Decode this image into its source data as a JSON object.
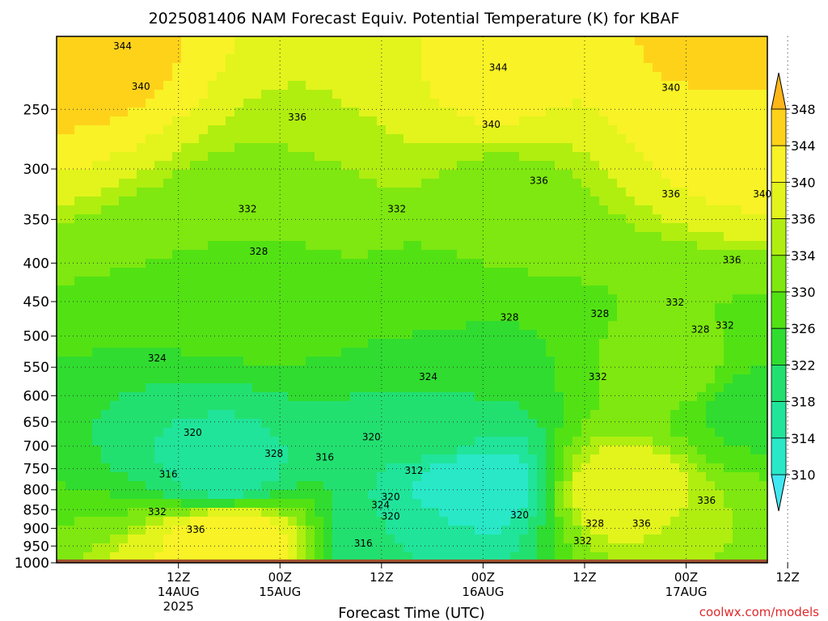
{
  "chart_data": {
    "type": "heatmap",
    "title": "2025081406 NAM Forecast Equiv. Potential Temperature (K) for KBAF",
    "xlabel": "Forecast Time (UTC)",
    "ylabel": "",
    "y_scale": "log",
    "y_reversed": true,
    "ylim": [
      1000,
      200
    ],
    "y_ticks": [
      250,
      300,
      350,
      400,
      450,
      500,
      550,
      600,
      650,
      700,
      750,
      800,
      850,
      900,
      950,
      1000
    ],
    "x_range_hours": [
      -6,
      64
    ],
    "x_ticks": [
      {
        "hour": 6,
        "label": "12Z",
        "sub1": "14AUG",
        "sub2": "2025"
      },
      {
        "hour": 16,
        "label": "00Z",
        "sub1": "15AUG",
        "sub2": ""
      },
      {
        "hour": 26,
        "label": "12Z",
        "sub1": "",
        "sub2": ""
      },
      {
        "hour": 36,
        "label": "00Z",
        "sub1": "16AUG",
        "sub2": ""
      },
      {
        "hour": 46,
        "label": "12Z",
        "sub1": "",
        "sub2": ""
      },
      {
        "hour": 56,
        "label": "00Z",
        "sub1": "17AUG",
        "sub2": ""
      },
      {
        "hour": 66,
        "label": "12Z",
        "sub1": "",
        "sub2": ""
      }
    ],
    "grid": true,
    "colorbar": {
      "levels": [
        310,
        314,
        318,
        322,
        326,
        330,
        334,
        336,
        340,
        344,
        348
      ],
      "colors": [
        "#40e8f2",
        "#28e8c8",
        "#20e49a",
        "#22e070",
        "#30dc30",
        "#52e214",
        "#7ee810",
        "#b0ee10",
        "#e2f41c",
        "#f8f226",
        "#ffd21a",
        "#ffb618"
      ],
      "extend": "both"
    },
    "ground_color": "#a0522d",
    "field_keypoints": [
      {
        "hour": 10.5,
        "pressure": 760,
        "value": 316
      },
      {
        "hour": 35,
        "pressure": 790,
        "value": 311
      },
      {
        "hour": 28,
        "pressure": 950,
        "value": 318
      },
      {
        "hour": 31,
        "pressure": 660,
        "value": 320
      },
      {
        "hour": 32,
        "pressure": 540,
        "value": 324
      },
      {
        "hour": 30,
        "pressure": 450,
        "value": 328
      },
      {
        "hour": 17,
        "pressure": 420,
        "value": 329
      },
      {
        "hour": 20,
        "pressure": 330,
        "value": 333
      },
      {
        "hour": 37,
        "pressure": 330,
        "value": 333
      },
      {
        "hour": 55,
        "pressure": 560,
        "value": 331
      },
      {
        "hour": 62,
        "pressure": 620,
        "value": 325
      },
      {
        "hour": 50,
        "pressure": 800,
        "value": 338
      },
      {
        "hour": 11,
        "pressure": 930,
        "value": 343
      },
      {
        "hour": 60,
        "pressure": 960,
        "value": 334
      },
      {
        "hour": 62,
        "pressure": 260,
        "value": 342
      },
      {
        "hour": -4,
        "pressure": 210,
        "value": 345
      },
      {
        "hour": 62,
        "pressure": 210,
        "value": 346
      },
      {
        "hour": 36,
        "pressure": 230,
        "value": 341
      },
      {
        "hour": 26,
        "pressure": 270,
        "value": 336
      }
    ],
    "contour_labels": [
      {
        "hour": 0.5,
        "pressure": 206,
        "text": "344"
      },
      {
        "hour": 37.5,
        "pressure": 220,
        "text": "344"
      },
      {
        "hour": 2.3,
        "pressure": 233,
        "text": "340"
      },
      {
        "hour": 17.7,
        "pressure": 256,
        "text": "336"
      },
      {
        "hour": 36.8,
        "pressure": 262,
        "text": "340"
      },
      {
        "hour": 54.5,
        "pressure": 234,
        "text": "340"
      },
      {
        "hour": 41.5,
        "pressure": 311,
        "text": "336"
      },
      {
        "hour": 54.5,
        "pressure": 324,
        "text": "336"
      },
      {
        "hour": 63.5,
        "pressure": 324,
        "text": "340"
      },
      {
        "hour": 12.8,
        "pressure": 339,
        "text": "332"
      },
      {
        "hour": 27.5,
        "pressure": 339,
        "text": "332"
      },
      {
        "hour": 13.9,
        "pressure": 386,
        "text": "328"
      },
      {
        "hour": 60.5,
        "pressure": 396,
        "text": "336"
      },
      {
        "hour": 54.9,
        "pressure": 451,
        "text": "332"
      },
      {
        "hour": 47.5,
        "pressure": 467,
        "text": "328"
      },
      {
        "hour": 38.6,
        "pressure": 472,
        "text": "328"
      },
      {
        "hour": 57.4,
        "pressure": 490,
        "text": "328"
      },
      {
        "hour": 59.8,
        "pressure": 484,
        "text": "332"
      },
      {
        "hour": 47.3,
        "pressure": 566,
        "text": "332"
      },
      {
        "hour": 3.9,
        "pressure": 535,
        "text": "324"
      },
      {
        "hour": 30.6,
        "pressure": 566,
        "text": "324"
      },
      {
        "hour": 7.4,
        "pressure": 672,
        "text": "320"
      },
      {
        "hour": 25.0,
        "pressure": 681,
        "text": "320"
      },
      {
        "hour": 15.4,
        "pressure": 716,
        "text": "328"
      },
      {
        "hour": 20.4,
        "pressure": 724,
        "text": "316"
      },
      {
        "hour": 5.0,
        "pressure": 763,
        "text": "316"
      },
      {
        "hour": 29.2,
        "pressure": 754,
        "text": "312"
      },
      {
        "hour": 3.9,
        "pressure": 856,
        "text": "332"
      },
      {
        "hour": 26.9,
        "pressure": 818,
        "text": "320"
      },
      {
        "hour": 25.9,
        "pressure": 838,
        "text": "324"
      },
      {
        "hour": 26.9,
        "pressure": 868,
        "text": "320"
      },
      {
        "hour": 39.6,
        "pressure": 864,
        "text": "320"
      },
      {
        "hour": 47.0,
        "pressure": 887,
        "text": "328"
      },
      {
        "hour": 51.6,
        "pressure": 887,
        "text": "336"
      },
      {
        "hour": 45.8,
        "pressure": 936,
        "text": "332"
      },
      {
        "hour": 7.7,
        "pressure": 904,
        "text": "336"
      },
      {
        "hour": 24.2,
        "pressure": 942,
        "text": "316"
      },
      {
        "hour": 58.0,
        "pressure": 827,
        "text": "336"
      }
    ]
  },
  "watermark": "coolwx.com/models"
}
